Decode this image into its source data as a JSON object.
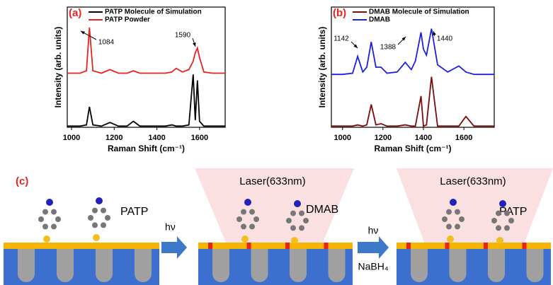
{
  "chart_data": [
    {
      "type": "line",
      "panel_label": "(a)",
      "x_label": "Raman Shift (cm⁻¹)",
      "y_label": "Intensity (arb. units)",
      "x": [
        980,
        1000,
        1040,
        1070,
        1084,
        1100,
        1140,
        1180,
        1220,
        1260,
        1290,
        1320,
        1400,
        1440,
        1470,
        1490,
        1520,
        1550,
        1570,
        1580,
        1590,
        1600,
        1620,
        1660,
        1720
      ],
      "series": [
        {
          "name": "PATP Molecule of Simulation",
          "color": "#000000",
          "values": [
            1,
            1,
            1,
            2,
            17,
            2,
            1,
            4,
            1,
            1,
            5,
            1,
            1,
            1,
            2,
            1,
            1,
            2,
            44,
            6,
            39,
            5,
            1,
            1,
            1
          ]
        },
        {
          "name": "PATP Powder",
          "color": "#e8231f",
          "values": [
            45,
            45,
            45,
            47,
            83,
            47,
            45,
            48,
            45,
            45,
            47,
            45,
            45,
            45,
            46,
            49,
            46,
            48,
            55,
            62,
            66,
            58,
            46,
            45,
            45
          ]
        }
      ],
      "annotations": [
        "1084",
        "1590"
      ],
      "xlim": [
        980,
        1720
      ],
      "xticks": [
        1000,
        1200,
        1400,
        1600
      ],
      "ylim": [
        0,
        100
      ],
      "legend": "upper left"
    },
    {
      "type": "line",
      "panel_label": "(b)",
      "x_label": "Raman Shift (cm⁻¹)",
      "y_label": "Intensity (arb. units)",
      "x": [
        945,
        1000,
        1050,
        1075,
        1100,
        1120,
        1142,
        1165,
        1190,
        1220,
        1270,
        1310,
        1340,
        1360,
        1388,
        1400,
        1415,
        1440,
        1470,
        1520,
        1575,
        1610,
        1650,
        1750
      ],
      "series": [
        {
          "name": "DMAB Molecule of Simulation",
          "color": "#7b0c0c",
          "values": [
            1,
            1,
            1,
            2,
            1,
            2,
            19,
            2,
            3,
            1,
            1,
            2,
            1,
            1,
            26,
            1,
            2,
            42,
            1,
            1,
            1,
            9,
            1,
            1
          ]
        },
        {
          "name": "DMAB",
          "color": "#1f1fe0",
          "values": [
            44,
            44,
            45,
            59,
            46,
            50,
            71,
            50,
            50,
            45,
            46,
            54,
            48,
            55,
            79,
            65,
            60,
            82,
            52,
            46,
            51,
            46,
            44,
            44
          ]
        }
      ],
      "annotations": [
        "1142",
        "1388",
        "1440"
      ],
      "xlim": [
        945,
        1750
      ],
      "xticks": [
        1000,
        1200,
        1400,
        1600
      ],
      "ylim": [
        0,
        100
      ],
      "legend": "upper left"
    }
  ],
  "diagram": {
    "panel_label": "(c)",
    "labels": [
      "PATP",
      "hν",
      "Laser(633nm)",
      "DMAB",
      "Laser(633nm)",
      "hν",
      "NaBH₄",
      "PATP"
    ]
  }
}
